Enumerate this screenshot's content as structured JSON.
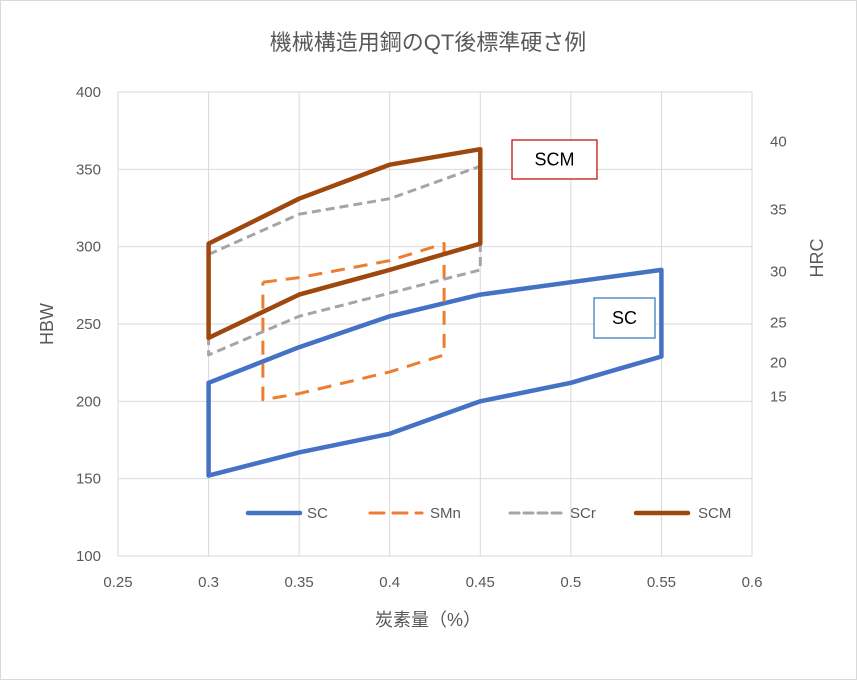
{
  "chart_data": {
    "type": "line",
    "title": "機械構造用鋼のQT後標準硬さ例",
    "xlabel": "炭素量（%）",
    "ylabel": "HBW",
    "y2label": "HRC",
    "xlim": [
      0.25,
      0.6
    ],
    "xticks": [
      0.25,
      0.3,
      0.35,
      0.4,
      0.45,
      0.5,
      0.55,
      0.6
    ],
    "ylim": [
      100,
      400
    ],
    "yticks": [
      100,
      150,
      200,
      250,
      300,
      350,
      400
    ],
    "y2ticks": [
      {
        "label": "40",
        "hbw": 368
      },
      {
        "label": "35",
        "hbw": 324
      },
      {
        "label": "30",
        "hbw": 284
      },
      {
        "label": "25",
        "hbw": 251
      },
      {
        "label": "20",
        "hbw": 225
      },
      {
        "label": "15",
        "hbw": 203
      }
    ],
    "grid": true,
    "legend": "bottom",
    "series": [
      {
        "name": "SC",
        "style": "solid",
        "color": "#4472C4",
        "points": [
          [
            0.3,
            152
          ],
          [
            0.35,
            167
          ],
          [
            0.4,
            179
          ],
          [
            0.45,
            200
          ],
          [
            0.5,
            212
          ],
          [
            0.55,
            229
          ],
          [
            0.55,
            285
          ],
          [
            0.5,
            277
          ],
          [
            0.45,
            269
          ],
          [
            0.4,
            255
          ],
          [
            0.35,
            235
          ],
          [
            0.3,
            212
          ],
          [
            0.3,
            152
          ]
        ]
      },
      {
        "name": "SMn",
        "style": "dash",
        "color": "#ED7D31",
        "points": [
          [
            0.33,
            277
          ],
          [
            0.35,
            280
          ],
          [
            0.4,
            291
          ],
          [
            0.43,
            302
          ],
          [
            0.43,
            230
          ],
          [
            0.4,
            219
          ],
          [
            0.35,
            205
          ],
          [
            0.33,
            201
          ],
          [
            0.33,
            277
          ]
        ]
      },
      {
        "name": "SCr",
        "style": "dash",
        "color": "#A5A5A5",
        "points": [
          [
            0.3,
            295
          ],
          [
            0.35,
            321
          ],
          [
            0.4,
            331
          ],
          [
            0.45,
            352
          ],
          [
            0.45,
            285
          ],
          [
            0.4,
            270
          ],
          [
            0.35,
            255
          ],
          [
            0.3,
            230
          ],
          [
            0.3,
            295
          ]
        ]
      },
      {
        "name": "SCM",
        "style": "solid",
        "color": "#9E480E",
        "points": [
          [
            0.3,
            241
          ],
          [
            0.3,
            302
          ],
          [
            0.35,
            331
          ],
          [
            0.4,
            353
          ],
          [
            0.45,
            363
          ],
          [
            0.45,
            302
          ],
          [
            0.4,
            285
          ],
          [
            0.35,
            269
          ],
          [
            0.3,
            241
          ]
        ]
      }
    ],
    "annotations": [
      {
        "text": "SCM",
        "color": "#C00000"
      },
      {
        "text": "SC",
        "color": "#2E75B6"
      }
    ]
  }
}
